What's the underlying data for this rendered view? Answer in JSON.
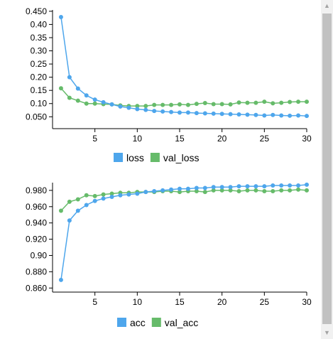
{
  "chart_data": [
    {
      "type": "line",
      "x": [
        1,
        2,
        3,
        4,
        5,
        6,
        7,
        8,
        9,
        10,
        11,
        12,
        13,
        14,
        15,
        16,
        17,
        18,
        19,
        20,
        21,
        22,
        23,
        24,
        25,
        26,
        27,
        28,
        29,
        30
      ],
      "x_ticks": [
        "5",
        "10",
        "15",
        "20",
        "25",
        "30"
      ],
      "x_tick_values": [
        5,
        10,
        15,
        20,
        25,
        30
      ],
      "xlim": [
        0,
        30
      ],
      "ylim": [
        0.005,
        0.455
      ],
      "y_ticks": [
        "0.050",
        "0.10",
        "0.15",
        "0.20",
        "0.25",
        "0.30",
        "0.35",
        "0.40",
        "0.450"
      ],
      "y_tick_values": [
        0.05,
        0.1,
        0.15,
        0.2,
        0.25,
        0.3,
        0.35,
        0.4,
        0.45
      ],
      "grid": false,
      "legend_position": "bottom",
      "series": [
        {
          "name": "loss",
          "color": "#4ea6ec",
          "values": [
            0.428,
            0.2,
            0.157,
            0.131,
            0.115,
            0.105,
            0.097,
            0.089,
            0.084,
            0.079,
            0.076,
            0.072,
            0.07,
            0.068,
            0.066,
            0.066,
            0.064,
            0.063,
            0.062,
            0.061,
            0.06,
            0.059,
            0.058,
            0.057,
            0.055,
            0.057,
            0.055,
            0.054,
            0.055,
            0.053
          ]
        },
        {
          "name": "val_loss",
          "color": "#66bb6a",
          "values": [
            0.158,
            0.122,
            0.111,
            0.1,
            0.1,
            0.098,
            0.097,
            0.093,
            0.091,
            0.091,
            0.091,
            0.095,
            0.095,
            0.095,
            0.097,
            0.095,
            0.099,
            0.102,
            0.098,
            0.098,
            0.097,
            0.104,
            0.103,
            0.103,
            0.107,
            0.101,
            0.103,
            0.106,
            0.107,
            0.107
          ]
        }
      ]
    },
    {
      "type": "line",
      "x": [
        1,
        2,
        3,
        4,
        5,
        6,
        7,
        8,
        9,
        10,
        11,
        12,
        13,
        14,
        15,
        16,
        17,
        18,
        19,
        20,
        21,
        22,
        23,
        24,
        25,
        26,
        27,
        28,
        29,
        30
      ],
      "x_ticks": [
        "5",
        "10",
        "15",
        "20",
        "25",
        "30"
      ],
      "x_tick_values": [
        5,
        10,
        15,
        20,
        25,
        30
      ],
      "xlim": [
        0,
        30
      ],
      "ylim": [
        0.855,
        0.9895
      ],
      "y_ticks": [
        "0.860",
        "0.880",
        "0.90",
        "0.920",
        "0.940",
        "0.960",
        "0.980"
      ],
      "y_tick_values": [
        0.86,
        0.88,
        0.9,
        0.92,
        0.94,
        0.96,
        0.98
      ],
      "grid": false,
      "legend_position": "bottom",
      "series": [
        {
          "name": "acc",
          "color": "#4ea6ec",
          "values": [
            0.87,
            0.943,
            0.955,
            0.962,
            0.967,
            0.97,
            0.972,
            0.974,
            0.975,
            0.976,
            0.978,
            0.979,
            0.98,
            0.981,
            0.982,
            0.982,
            0.983,
            0.983,
            0.984,
            0.984,
            0.984,
            0.985,
            0.985,
            0.985,
            0.985,
            0.986,
            0.986,
            0.986,
            0.986,
            0.987
          ]
        },
        {
          "name": "val_acc",
          "color": "#66bb6a",
          "values": [
            0.955,
            0.966,
            0.969,
            0.974,
            0.973,
            0.975,
            0.976,
            0.977,
            0.977,
            0.978,
            0.978,
            0.978,
            0.979,
            0.979,
            0.978,
            0.979,
            0.979,
            0.978,
            0.98,
            0.98,
            0.98,
            0.979,
            0.98,
            0.98,
            0.979,
            0.979,
            0.98,
            0.98,
            0.981,
            0.98
          ]
        }
      ]
    }
  ]
}
